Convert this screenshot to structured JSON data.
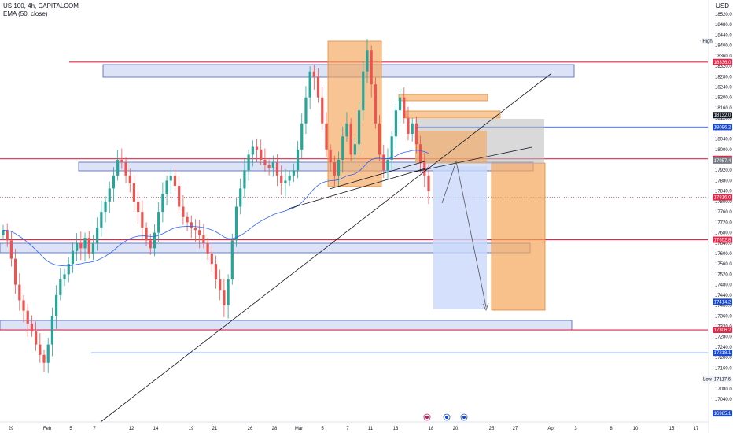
{
  "header": {
    "symbol_line": "US 100, 4h, CAPITALCOM",
    "indicator_line": "EMA (50, close)",
    "currency": "USD"
  },
  "colors": {
    "bull": "#26a69a",
    "bear": "#ef5350",
    "ema": "#2962ff",
    "zone_fill": "#d4dcf5",
    "zone_stroke": "#4a5fb8",
    "red_line": "#e0294a",
    "orange_box": "#f5a55a",
    "blue_box": "#c9d8fb",
    "grey_box": "#b9b9b9"
  },
  "chart_data": {
    "type": "candlestick",
    "ylim": [
      17000,
      18540
    ],
    "y_ticks": [
      17040,
      17080,
      17120,
      17160,
      17200,
      17240,
      17280,
      17320,
      17360,
      17400,
      17440,
      17480,
      17520,
      17560,
      17600,
      17640,
      17680,
      17720,
      17760,
      17800,
      17840,
      17880,
      17920,
      17960,
      18000,
      18040,
      18080,
      18120,
      18160,
      18200,
      18240,
      18280,
      18320,
      18360,
      18400,
      18440,
      18480,
      18520
    ],
    "x_ticks": [
      "29",
      "Feb",
      "5",
      "7",
      "12",
      "14",
      "19",
      "21",
      "26",
      "28",
      "Mar",
      "5",
      "7",
      "11",
      "13",
      "18",
      "20",
      "25",
      "27",
      "Apr",
      "3",
      "8",
      "10",
      "15",
      "17"
    ],
    "price_labels": [
      {
        "text": "High",
        "value": 18417.4,
        "style": "plain"
      },
      {
        "text": "18336.0",
        "value": 18336.0,
        "style": "red"
      },
      {
        "text": "18132.0",
        "value": 18132.0,
        "style": "dark"
      },
      {
        "text": "18086.2",
        "value": 18086.2,
        "style": "blue"
      },
      {
        "text": "17964.0",
        "value": 17964.0,
        "style": "red"
      },
      {
        "text": "17957.4",
        "value": 17957.4,
        "style": "grey"
      },
      {
        "text": "17816.0",
        "value": 17816.0,
        "style": "red"
      },
      {
        "text": "17652.8",
        "value": 17652.8,
        "style": "red"
      },
      {
        "text": "17414.2",
        "value": 17414.2,
        "style": "blue"
      },
      {
        "text": "17306.2",
        "value": 17306.2,
        "style": "red"
      },
      {
        "text": "17218.1",
        "value": 17218.1,
        "style": "blue"
      },
      {
        "text": "Low",
        "value": 17117.6,
        "style": "plain"
      },
      {
        "text": "17117.6",
        "value": 17117.6,
        "style": "plainvalue"
      },
      {
        "text": "16985.1",
        "value": 16985.1,
        "style": "blue"
      }
    ],
    "support_resistance_levels": [
      18336.0,
      17964.0,
      17652.8,
      17306.2
    ],
    "info_levels": [
      18086.2,
      17218.1
    ],
    "highlighted_price": 17816.0,
    "series": [
      {
        "name": "US 100",
        "candles_close": [
          17690,
          17650,
          17580,
          17480,
          17420,
          17380,
          17330,
          17300,
          17250,
          17210,
          17180,
          17250,
          17360,
          17440,
          17500,
          17520,
          17560,
          17610,
          17640,
          17620,
          17660,
          17600,
          17640,
          17700,
          17760,
          17800,
          17850,
          17900,
          17960,
          17950,
          17900,
          17870,
          17800,
          17760,
          17700,
          17650,
          17620,
          17680,
          17760,
          17830,
          17880,
          17900,
          17860,
          17780,
          17740,
          17720,
          17700,
          17690,
          17670,
          17640,
          17600,
          17560,
          17500,
          17460,
          17400,
          17500,
          17650,
          17780,
          17850,
          17920,
          17980,
          18010,
          18000,
          17960,
          17940,
          17930,
          17950,
          17900,
          17870,
          17880,
          17900,
          17920,
          18000,
          18100,
          18200,
          18300,
          18280,
          18200,
          18100,
          18000,
          17950,
          17900,
          17960,
          18050,
          18100,
          17980,
          18020,
          18150,
          18300,
          18380,
          18250,
          18100,
          17980,
          17920,
          17960,
          18050,
          18150,
          18200,
          18120,
          18060,
          18100,
          18020,
          17950,
          17900,
          17840
        ]
      }
    ],
    "ema_period": 50
  }
}
